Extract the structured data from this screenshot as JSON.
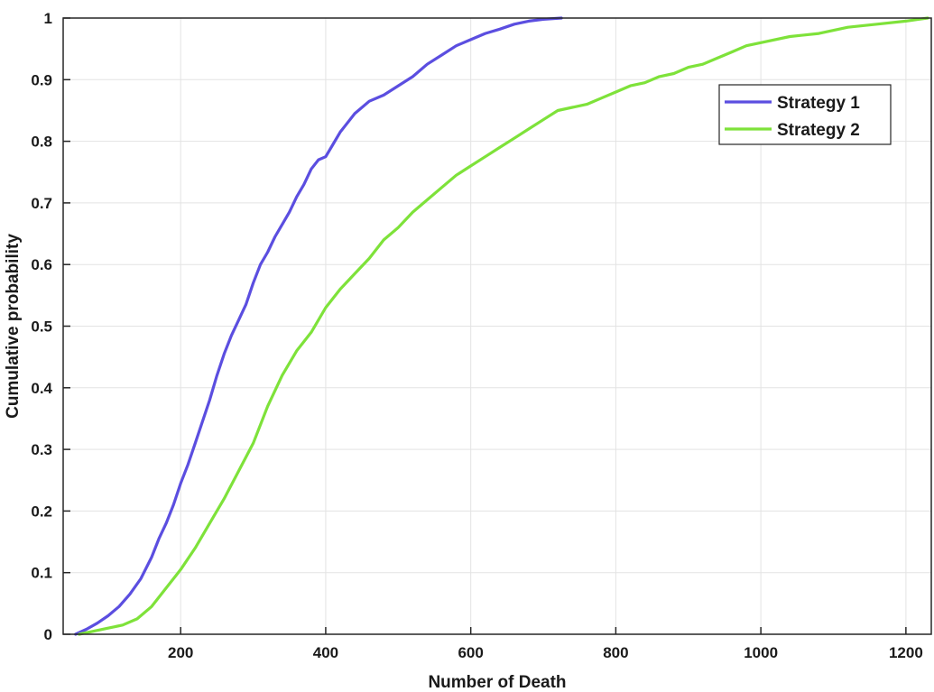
{
  "chart_data": {
    "type": "line",
    "xlabel": "Number of Death",
    "ylabel": "Cumulative probability",
    "xlim": [
      38,
      1235
    ],
    "ylim": [
      0,
      1
    ],
    "x_ticks": [
      200,
      400,
      600,
      800,
      1000,
      1200
    ],
    "y_ticks": [
      0,
      0.1,
      0.2,
      0.3,
      0.4,
      0.5,
      0.6,
      0.7,
      0.8,
      0.9,
      1
    ],
    "y_tick_labels": [
      "0",
      "0.1",
      "0.2",
      "0.3",
      "0.4",
      "0.5",
      "0.6",
      "0.7",
      "0.8",
      "0.9",
      "1"
    ],
    "grid": true,
    "legend_position": "top-right",
    "series": [
      {
        "name": "Strategy 1",
        "color": "#5b4ee0",
        "x": [
          55,
          70,
          85,
          100,
          115,
          130,
          145,
          160,
          170,
          180,
          190,
          200,
          210,
          220,
          230,
          240,
          250,
          260,
          270,
          280,
          290,
          300,
          310,
          320,
          330,
          340,
          350,
          360,
          370,
          380,
          390,
          400,
          410,
          420,
          440,
          460,
          480,
          500,
          520,
          540,
          560,
          580,
          600,
          620,
          640,
          660,
          680,
          700,
          725
        ],
        "y": [
          0.0,
          0.008,
          0.018,
          0.03,
          0.045,
          0.065,
          0.09,
          0.125,
          0.155,
          0.18,
          0.21,
          0.245,
          0.275,
          0.31,
          0.345,
          0.38,
          0.42,
          0.455,
          0.485,
          0.51,
          0.535,
          0.57,
          0.6,
          0.62,
          0.645,
          0.665,
          0.685,
          0.71,
          0.73,
          0.755,
          0.77,
          0.775,
          0.795,
          0.815,
          0.845,
          0.865,
          0.875,
          0.89,
          0.905,
          0.925,
          0.94,
          0.955,
          0.965,
          0.975,
          0.982,
          0.99,
          0.995,
          0.998,
          1.0
        ]
      },
      {
        "name": "Strategy 2",
        "color": "#7ee23a",
        "x": [
          60,
          80,
          100,
          120,
          140,
          160,
          180,
          200,
          220,
          240,
          260,
          280,
          300,
          320,
          340,
          360,
          380,
          400,
          420,
          440,
          460,
          480,
          500,
          520,
          540,
          560,
          580,
          600,
          620,
          640,
          660,
          680,
          700,
          720,
          740,
          760,
          780,
          800,
          820,
          840,
          860,
          880,
          900,
          920,
          940,
          960,
          980,
          1000,
          1040,
          1080,
          1120,
          1160,
          1200,
          1230
        ],
        "y": [
          0.0,
          0.005,
          0.01,
          0.015,
          0.025,
          0.045,
          0.075,
          0.105,
          0.14,
          0.18,
          0.22,
          0.265,
          0.31,
          0.37,
          0.42,
          0.46,
          0.49,
          0.53,
          0.56,
          0.585,
          0.61,
          0.64,
          0.66,
          0.685,
          0.705,
          0.725,
          0.745,
          0.76,
          0.775,
          0.79,
          0.805,
          0.82,
          0.835,
          0.85,
          0.855,
          0.86,
          0.87,
          0.88,
          0.89,
          0.895,
          0.905,
          0.91,
          0.92,
          0.925,
          0.935,
          0.945,
          0.955,
          0.96,
          0.97,
          0.975,
          0.985,
          0.99,
          0.995,
          1.0
        ]
      }
    ]
  }
}
